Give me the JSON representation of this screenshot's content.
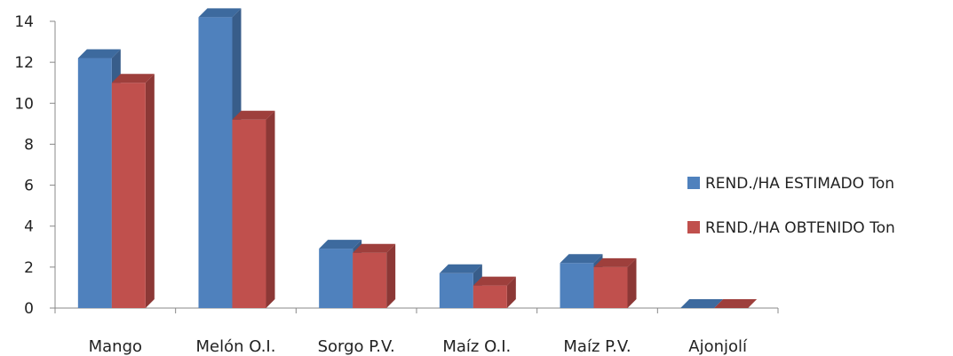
{
  "chart_data": {
    "type": "bar",
    "title": "",
    "xlabel": "",
    "ylabel": "",
    "categories": [
      "Mango",
      "Melón O.I.",
      "Sorgo P.V.",
      "Maíz O.I.",
      "Maíz P.V.",
      "Ajonjolí"
    ],
    "series": [
      {
        "name": "REND./HA ESTIMADO Ton",
        "values": [
          12.2,
          14.2,
          2.9,
          1.7,
          2.2,
          0
        ],
        "color": "#4F81BD",
        "side_color": "#385D8A",
        "top_color": "#3D6A9E"
      },
      {
        "name": "REND./HA OBTENIDO Ton",
        "values": [
          11.0,
          9.2,
          2.7,
          1.1,
          2.0,
          0
        ],
        "color": "#C0504D",
        "side_color": "#8C3836",
        "top_color": "#9E3F3C"
      }
    ],
    "ylim": [
      0,
      14
    ],
    "yticks": [
      0,
      2,
      4,
      6,
      8,
      10,
      12,
      14
    ],
    "grid": false,
    "legend_position": "right",
    "style": "3d-clustered-column"
  }
}
